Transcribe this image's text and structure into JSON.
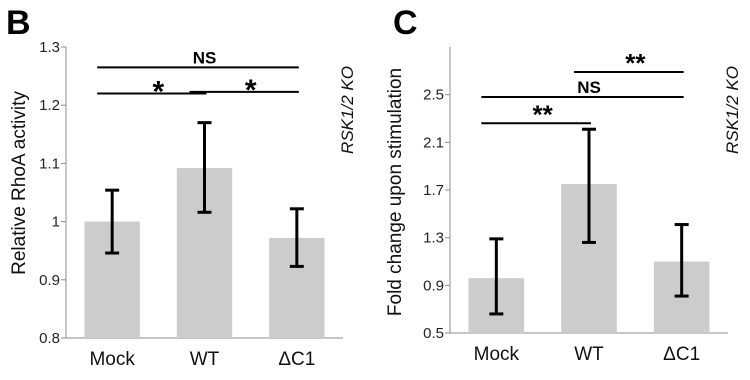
{
  "chart_data": [
    {
      "type": "bar",
      "panel": "B",
      "categories": [
        "Mock",
        "WT",
        "ΔC1"
      ],
      "values": [
        1.0,
        1.092,
        0.972
      ],
      "errors": [
        [
          0.946,
          1.054
        ],
        [
          1.016,
          1.17
        ],
        [
          0.923,
          1.022
        ]
      ],
      "ylabel": "Relative RhoA activity",
      "ylim": [
        0.8,
        1.3
      ],
      "yticks": [
        "0.8",
        "0.9",
        "1",
        "1.1",
        "1.2",
        "1.3"
      ],
      "grid": false,
      "annotation": "RSK1/2 KO",
      "significance": [
        {
          "from": "Mock",
          "to": "WT",
          "label": "*",
          "level": 1.22
        },
        {
          "from": "Mock",
          "to": "ΔC1",
          "label": "NS",
          "level": 1.265
        },
        {
          "from": "WT",
          "to": "ΔC1",
          "label": "*",
          "level": 1.223
        }
      ]
    },
    {
      "type": "bar",
      "panel": "C",
      "categories": [
        "Mock",
        "WT",
        "ΔC1"
      ],
      "values": [
        0.96,
        1.75,
        1.1
      ],
      "errors": [
        [
          0.66,
          1.29
        ],
        [
          1.26,
          2.21
        ],
        [
          0.81,
          1.41
        ]
      ],
      "ylabel": "Fold change upon stimulation",
      "ylim": [
        0.5,
        2.9
      ],
      "yticks": [
        "0.5",
        "0.9",
        "1.3",
        "1.7",
        "2.1",
        "2.5"
      ],
      "grid": false,
      "annotation": "RSK1/2 KO",
      "significance": [
        {
          "from": "Mock",
          "to": "WT",
          "label": "**",
          "level": 2.26
        },
        {
          "from": "Mock",
          "to": "ΔC1",
          "label": "NS",
          "level": 2.48
        },
        {
          "from": "WT",
          "to": "ΔC1",
          "label": "**",
          "level": 2.69
        }
      ]
    }
  ]
}
